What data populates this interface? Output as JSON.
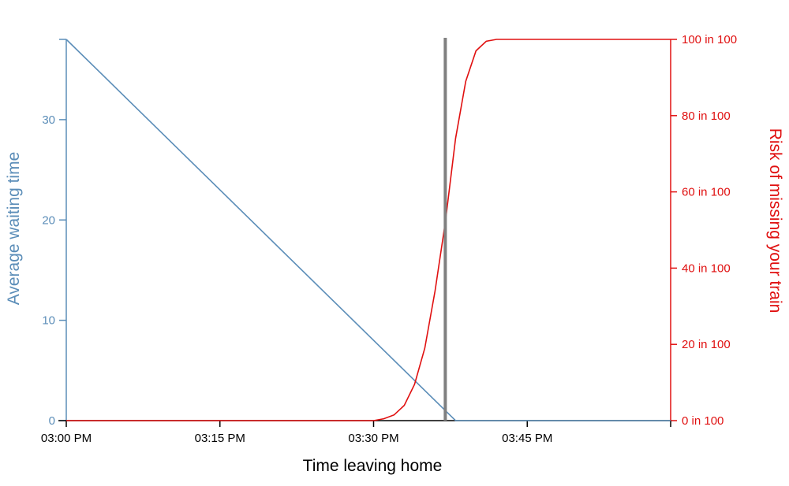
{
  "chart_data": {
    "type": "line",
    "xlabel": "Time leaving home",
    "ylabel_left": "Average waiting time",
    "ylabel_right": "Risk of missing your train",
    "x_ticks": [
      "03:00 PM",
      "03:15 PM",
      "03:30 PM",
      "03:45 PM"
    ],
    "x_tick_minutes": [
      0,
      15,
      30,
      45
    ],
    "xlim_minutes": [
      0,
      59
    ],
    "left_ylim": [
      0,
      38
    ],
    "left_ticks": [
      0,
      10,
      20,
      30
    ],
    "right_ylim": [
      0,
      100
    ],
    "right_ticks": [
      0,
      20,
      40,
      60,
      80,
      100
    ],
    "right_tick_labels": [
      "0 in 100",
      "20 in 100",
      "40 in 100",
      "60 in 100",
      "80 in 100",
      "100 in 100"
    ],
    "marker_minute": 37,
    "series": [
      {
        "axis": "left",
        "x_minutes": [
          0,
          38,
          59
        ],
        "values": [
          38,
          0,
          0
        ]
      },
      {
        "axis": "right",
        "x_minutes": [
          0,
          30,
          31,
          32,
          33,
          34,
          35,
          36,
          37,
          38,
          39,
          40,
          41,
          42,
          43,
          44,
          59
        ],
        "values": [
          0,
          0,
          0.5,
          1.5,
          4,
          9.5,
          19,
          34,
          52,
          74,
          89,
          97,
          99.5,
          100,
          100,
          100,
          100
        ]
      }
    ],
    "grid": false,
    "colors": {
      "left": "#5b8db8",
      "right": "#e01010",
      "marker": "#808080",
      "axis": "#000000"
    }
  }
}
